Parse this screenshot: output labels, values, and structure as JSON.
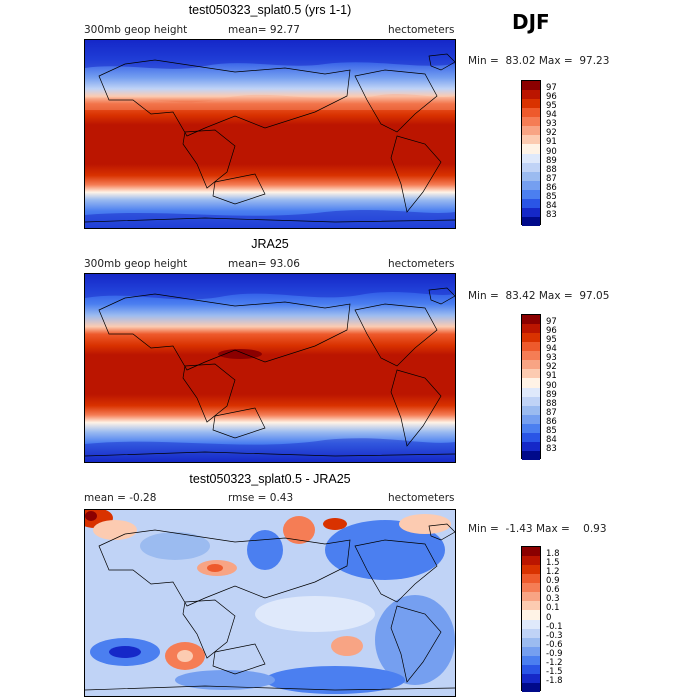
{
  "season": "DJF",
  "panels": [
    {
      "title": "test050323_splat0.5 (yrs 1-1)",
      "field": "300mb geop height",
      "mean_text": "mean=  92.77",
      "units": "hectometers",
      "min_max_text": "Min =  83.02 Max =  97.23",
      "levels": [
        "97",
        "96",
        "95",
        "94",
        "93",
        "92",
        "91",
        "90",
        "89",
        "88",
        "87",
        "86",
        "85",
        "84",
        "83"
      ],
      "colors": [
        "#8b0000",
        "#bb1500",
        "#d93200",
        "#ee5a2c",
        "#f57d55",
        "#f8a484",
        "#fccbb1",
        "#fff3e6",
        "#dfe9fb",
        "#c0d3f6",
        "#9bbbf0",
        "#759ff0",
        "#4b7ff0",
        "#2a55e6",
        "#1528c8",
        "#000a8a"
      ]
    },
    {
      "title": "JRA25",
      "field": "300mb geop height",
      "mean_text": "mean=  93.06",
      "units": "hectometers",
      "min_max_text": "Min =  83.42 Max =  97.05",
      "levels": [
        "97",
        "96",
        "95",
        "94",
        "93",
        "92",
        "91",
        "90",
        "89",
        "88",
        "87",
        "86",
        "85",
        "84",
        "83"
      ],
      "colors": [
        "#8b0000",
        "#bb1500",
        "#d93200",
        "#ee5a2c",
        "#f57d55",
        "#f8a484",
        "#fccbb1",
        "#fff3e6",
        "#dfe9fb",
        "#c0d3f6",
        "#9bbbf0",
        "#759ff0",
        "#4b7ff0",
        "#2a55e6",
        "#1528c8",
        "#000a8a"
      ]
    },
    {
      "title": "test050323_splat0.5 - JRA25",
      "mean_text": "mean =   -0.28",
      "rmse_text": "rmse =    0.43",
      "units": "hectometers",
      "min_max_text": "Min =  -1.43 Max =    0.93",
      "levels": [
        "1.8",
        "1.5",
        "1.2",
        "0.9",
        "0.6",
        "0.3",
        "0.1",
        "0",
        "-0.1",
        "-0.3",
        "-0.6",
        "-0.9",
        "-1.2",
        "-1.5",
        "-1.8"
      ],
      "colors": [
        "#8b0000",
        "#bb1500",
        "#d93200",
        "#ee5a2c",
        "#f57d55",
        "#f8a484",
        "#fccbb1",
        "#fff3e6",
        "#dfe9fb",
        "#c0d3f6",
        "#9bbbf0",
        "#759ff0",
        "#4b7ff0",
        "#2a55e6",
        "#1528c8",
        "#000a8a"
      ]
    }
  ]
}
